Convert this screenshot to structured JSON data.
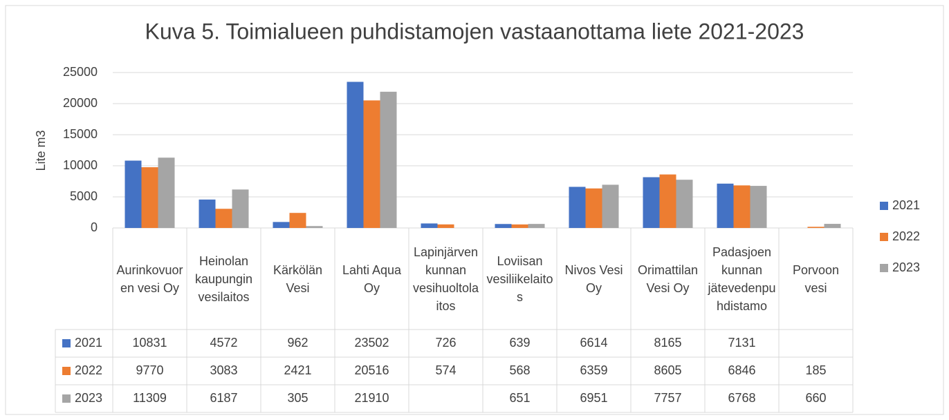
{
  "chart_data": {
    "type": "bar",
    "title": "Kuva 5. Toimialueen puhdistamojen vastaanottama liete 2021-2023",
    "y_label": "Lite m3",
    "categories": [
      "Aurinkovuoren vesi Oy",
      "Heinolan kaupungin vesilaitos",
      "Kärkölän Vesi",
      "Lahti Aqua Oy",
      "Lapinjärven kunnan vesihuoltolaitos",
      "Loviisan vesiliikelaitos",
      "Nivos Vesi Oy",
      "Orimattilan Vesi Oy",
      "Padasjoen kunnan jätevedenpuhdistamo",
      "Porvoon vesi"
    ],
    "series": [
      {
        "name": "2021",
        "color": "#4472c4",
        "values": [
          10831,
          4572,
          962,
          23502,
          726,
          639,
          6614,
          8165,
          7131,
          null
        ]
      },
      {
        "name": "2022",
        "color": "#ed7d31",
        "values": [
          9770,
          3083,
          2421,
          20516,
          574,
          568,
          6359,
          8605,
          6846,
          185
        ]
      },
      {
        "name": "2023",
        "color": "#a5a5a5",
        "values": [
          11309,
          6187,
          305,
          21910,
          null,
          651,
          6951,
          7757,
          6768,
          660
        ]
      }
    ],
    "ylim": [
      0,
      25000
    ],
    "yticks": [
      0,
      5000,
      10000,
      15000,
      20000,
      25000
    ],
    "grid": true,
    "legend": "right",
    "data_table": true
  }
}
